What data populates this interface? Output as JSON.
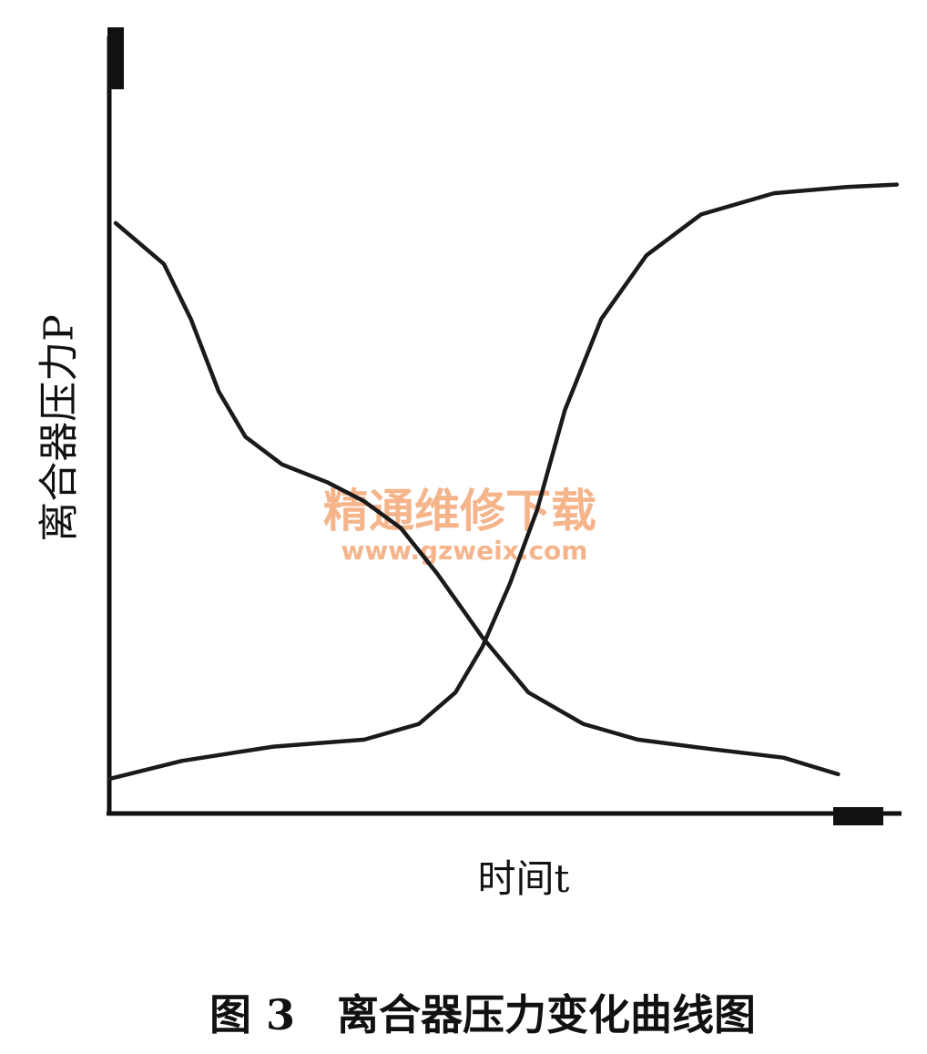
{
  "chart_data": {
    "type": "line",
    "title": "图 3　离合器压力变化曲线图",
    "x_label": "时间t",
    "y_label": "离合器压力P",
    "annotations": [
      "精通维修下载",
      "www.gzweix.com"
    ],
    "xlim": [
      0,
      100
    ],
    "ylim": [
      0,
      100
    ],
    "grid": false,
    "series": [
      {
        "color": "#1a1a1a",
        "x": [
          0.8,
          6.9,
          10.3,
          13.8,
          17.2,
          21.8,
          27.6,
          32.2,
          36.8,
          41.4,
          47.1,
          52.9,
          59.8,
          66.7,
          75.9,
          85.1,
          92.0
        ],
        "values": [
          75.1,
          69.9,
          62.9,
          53.7,
          47.9,
          44.4,
          42.1,
          39.7,
          36.3,
          30.5,
          22.4,
          15.4,
          11.4,
          9.4,
          8.2,
          7.1,
          5.0
        ]
      },
      {
        "color": "#1a1a1a",
        "x": [
          0,
          9.2,
          20.7,
          32.2,
          39.1,
          43.7,
          47.1,
          50.6,
          54.0,
          57.5,
          62.1,
          67.8,
          74.7,
          83.9,
          93.1,
          99.4
        ],
        "values": [
          4.4,
          6.7,
          8.5,
          9.4,
          11.4,
          15.4,
          21.2,
          29.3,
          38.6,
          51.3,
          62.9,
          71.0,
          76.2,
          78.9,
          79.7,
          80.0
        ]
      }
    ]
  }
}
